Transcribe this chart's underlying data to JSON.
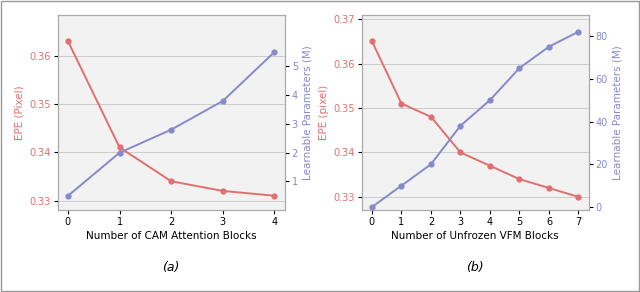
{
  "a": {
    "x": [
      0,
      1,
      2,
      3,
      4
    ],
    "epe": [
      0.363,
      0.341,
      0.334,
      0.332,
      0.331
    ],
    "params": [
      0.5,
      2.0,
      2.8,
      3.8,
      5.5
    ],
    "xlabel": "Number of CAM Attention Blocks",
    "ylabel_left": "EPE (Pixel)",
    "ylabel_right": "Learnable Parameters (M)",
    "ylim_left": [
      0.328,
      0.3685
    ],
    "ylim_right": [
      0,
      6.8
    ],
    "yticks_left": [
      0.33,
      0.34,
      0.35,
      0.36
    ],
    "yticks_right": [
      1,
      2,
      3,
      4,
      5
    ],
    "label": "(a)"
  },
  "b": {
    "x": [
      0,
      1,
      2,
      3,
      4,
      5,
      6,
      7
    ],
    "epe": [
      0.365,
      0.351,
      0.348,
      0.34,
      0.337,
      0.334,
      0.332,
      0.33
    ],
    "params": [
      0,
      10,
      20,
      38,
      50,
      65,
      75,
      82
    ],
    "xlabel": "Number of Unfrozen VFM Blocks",
    "ylabel_left": "EPE (pixel)",
    "ylabel_right": "Learnable Parameters (M)",
    "ylim_left": [
      0.327,
      0.371
    ],
    "ylim_right": [
      -1.5,
      90
    ],
    "yticks_left": [
      0.33,
      0.34,
      0.35,
      0.36,
      0.37
    ],
    "yticks_right": [
      0,
      20,
      40,
      60,
      80
    ],
    "label": "(b)"
  },
  "red_color": "#E07070",
  "blue_color": "#8888CC",
  "grid_color": "#CCCCCC",
  "bg_color": "#F2F2F2",
  "marker": "o",
  "markersize": 3.5,
  "linewidth": 1.4,
  "fontsize_label": 7.5,
  "fontsize_tick": 7,
  "fontsize_caption": 9,
  "border_color": "#AAAAAA"
}
